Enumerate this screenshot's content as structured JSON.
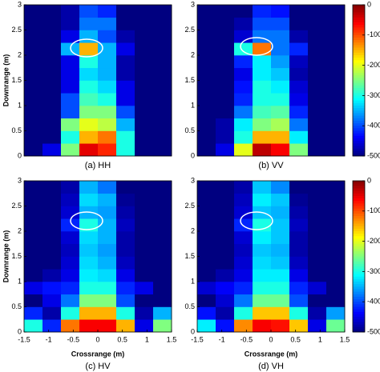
{
  "chart_data": [
    {
      "type": "heatmap",
      "caption": "(a) HH",
      "ylabel": "Downrange (m)",
      "xlim": [
        -1.5,
        1.5
      ],
      "ylim": [
        0,
        3
      ],
      "yticks": [
        0,
        0.5,
        1,
        1.5,
        2,
        2.5,
        3
      ],
      "zlim": [
        -500,
        0
      ],
      "values": [
        [
          -500,
          -450,
          -250,
          -50,
          -80,
          -300,
          -500,
          -500
        ],
        [
          -500,
          -500,
          -300,
          -150,
          -120,
          -300,
          -500,
          -500
        ],
        [
          -500,
          -500,
          -250,
          -200,
          -220,
          -350,
          -500,
          -500
        ],
        [
          -500,
          -500,
          -400,
          -250,
          -250,
          -400,
          -500,
          -500
        ],
        [
          -500,
          -500,
          -400,
          -280,
          -300,
          -450,
          -500,
          -500
        ],
        [
          -500,
          -500,
          -450,
          -300,
          -330,
          -450,
          -500,
          -500
        ],
        [
          -500,
          -500,
          -450,
          -330,
          -350,
          -480,
          -500,
          -500
        ],
        [
          -500,
          -500,
          -450,
          -300,
          -350,
          -480,
          -500,
          -500
        ],
        [
          -500,
          -500,
          -350,
          -150,
          -350,
          -450,
          -500,
          -500
        ],
        [
          -500,
          -500,
          -450,
          -350,
          -400,
          -480,
          -500,
          -500
        ],
        [
          -500,
          -500,
          -480,
          -380,
          -380,
          -500,
          -500,
          -500
        ],
        [
          -500,
          -500,
          -480,
          -400,
          -420,
          -500,
          -500,
          -500
        ]
      ]
    },
    {
      "type": "heatmap",
      "caption": "(b) VV",
      "xlim": [
        -1.5,
        1.5
      ],
      "ylim": [
        0,
        3
      ],
      "yticks": [
        0,
        0.5,
        1,
        1.5,
        2,
        2.5,
        3
      ],
      "zlim": [
        -500,
        0
      ],
      "zticks": [
        0,
        -100,
        -200,
        -300,
        -400,
        -500
      ],
      "colorbar": true,
      "values": [
        [
          -500,
          -450,
          -200,
          -30,
          -60,
          -250,
          -500,
          -500
        ],
        [
          -500,
          -480,
          -300,
          -150,
          -150,
          -320,
          -500,
          -500
        ],
        [
          -500,
          -480,
          -320,
          -250,
          -230,
          -380,
          -500,
          -500
        ],
        [
          -500,
          -500,
          -380,
          -280,
          -270,
          -420,
          -500,
          -500
        ],
        [
          -500,
          -500,
          -420,
          -300,
          -300,
          -450,
          -500,
          -500
        ],
        [
          -500,
          -500,
          -430,
          -300,
          -320,
          -460,
          -500,
          -500
        ],
        [
          -500,
          -500,
          -450,
          -320,
          -340,
          -480,
          -500,
          -500
        ],
        [
          -500,
          -500,
          -420,
          -320,
          -360,
          -470,
          -500,
          -500
        ],
        [
          -500,
          -500,
          -300,
          -120,
          -380,
          -420,
          -500,
          -500
        ],
        [
          -500,
          -500,
          -460,
          -380,
          -380,
          -480,
          -500,
          -500
        ],
        [
          -500,
          -500,
          -480,
          -400,
          -400,
          -500,
          -500,
          -500
        ],
        [
          -500,
          -500,
          -500,
          -420,
          -430,
          -500,
          -500,
          -500
        ]
      ]
    },
    {
      "type": "heatmap",
      "caption": "(c) HV",
      "ylabel": "Downrange (m)",
      "xlabel": "Crossrange (m)",
      "xlim": [
        -1.5,
        1.5
      ],
      "ylim": [
        0,
        3
      ],
      "xticks": [
        -1.5,
        -1,
        -0.5,
        0,
        0.5,
        1,
        1.5
      ],
      "yticks": [
        0,
        0.5,
        1,
        1.5,
        2,
        2.5,
        3
      ],
      "zlim": [
        -500,
        0
      ],
      "values": [
        [
          -300,
          -420,
          -120,
          -60,
          -60,
          -150,
          -450,
          -250
        ],
        [
          -420,
          -480,
          -300,
          -150,
          -150,
          -300,
          -480,
          -350
        ],
        [
          -500,
          -450,
          -380,
          -250,
          -250,
          -400,
          -500,
          -500
        ],
        [
          -450,
          -430,
          -420,
          -300,
          -300,
          -420,
          -450,
          -500
        ],
        [
          -500,
          -480,
          -450,
          -320,
          -330,
          -450,
          -500,
          -500
        ],
        [
          -500,
          -500,
          -460,
          -330,
          -350,
          -470,
          -500,
          -500
        ],
        [
          -500,
          -500,
          -470,
          -340,
          -360,
          -480,
          -500,
          -500
        ],
        [
          -500,
          -500,
          -460,
          -330,
          -350,
          -480,
          -500,
          -500
        ],
        [
          -500,
          -500,
          -420,
          -300,
          -350,
          -470,
          -500,
          -500
        ],
        [
          -500,
          -500,
          -460,
          -350,
          -360,
          -480,
          -500,
          -500
        ],
        [
          -500,
          -500,
          -470,
          -330,
          -350,
          -490,
          -500,
          -500
        ],
        [
          -500,
          -500,
          -480,
          -350,
          -380,
          -500,
          -500,
          -500
        ]
      ]
    },
    {
      "type": "heatmap",
      "caption": "(d) VH",
      "xlabel": "Crossrange (m)",
      "xlim": [
        -1.5,
        1.5
      ],
      "ylim": [
        0,
        3
      ],
      "xticks": [
        -1.5,
        -1,
        -0.5,
        0,
        0.5,
        1,
        1.5
      ],
      "yticks": [
        0,
        0.5,
        1,
        1.5,
        2,
        2.5,
        3
      ],
      "zlim": [
        -500,
        0
      ],
      "zticks": [
        0,
        -100,
        -200,
        -300,
        -400,
        -500
      ],
      "colorbar": true,
      "values": [
        [
          -320,
          -430,
          -130,
          -60,
          -70,
          -160,
          -450,
          -260
        ],
        [
          -430,
          -480,
          -300,
          -160,
          -160,
          -300,
          -480,
          -360
        ],
        [
          -500,
          -460,
          -380,
          -260,
          -260,
          -400,
          -500,
          -500
        ],
        [
          -460,
          -440,
          -420,
          -300,
          -300,
          -420,
          -460,
          -500
        ],
        [
          -500,
          -480,
          -450,
          -320,
          -320,
          -450,
          -500,
          -500
        ],
        [
          -500,
          -500,
          -460,
          -330,
          -340,
          -470,
          -500,
          -500
        ],
        [
          -500,
          -500,
          -470,
          -340,
          -350,
          -480,
          -500,
          -500
        ],
        [
          -500,
          -500,
          -460,
          -320,
          -340,
          -480,
          -500,
          -500
        ],
        [
          -500,
          -500,
          -420,
          -300,
          -340,
          -470,
          -500,
          -500
        ],
        [
          -500,
          -500,
          -460,
          -340,
          -350,
          -480,
          -500,
          -500
        ],
        [
          -500,
          -500,
          -470,
          -320,
          -340,
          -490,
          -500,
          -500
        ],
        [
          -500,
          -500,
          -480,
          -340,
          -370,
          -500,
          -500,
          -500
        ]
      ]
    }
  ]
}
